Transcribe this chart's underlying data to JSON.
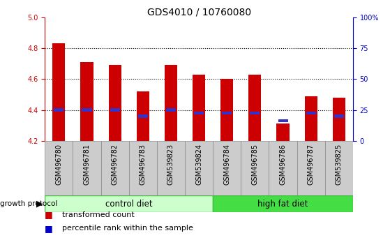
{
  "title": "GDS4010 / 10760080",
  "samples": [
    "GSM496780",
    "GSM496781",
    "GSM496782",
    "GSM496783",
    "GSM539823",
    "GSM539824",
    "GSM496784",
    "GSM496785",
    "GSM496786",
    "GSM496787",
    "GSM539825"
  ],
  "red_values": [
    4.83,
    4.71,
    4.69,
    4.52,
    4.69,
    4.63,
    4.6,
    4.63,
    4.31,
    4.49,
    4.48
  ],
  "blue_values": [
    4.4,
    4.4,
    4.4,
    4.36,
    4.4,
    4.38,
    4.38,
    4.38,
    4.33,
    4.38,
    4.36
  ],
  "y_min": 4.2,
  "y_max": 5.0,
  "y_ticks_left": [
    4.2,
    4.4,
    4.6,
    4.8,
    5.0
  ],
  "y_ticks_right": [
    0,
    25,
    50,
    75,
    100
  ],
  "groups": [
    {
      "label": "control diet",
      "color": "#ccffcc",
      "dark_color": "#44bb44",
      "start": 0,
      "end": 6
    },
    {
      "label": "high fat diet",
      "color": "#44dd44",
      "dark_color": "#44bb44",
      "start": 6,
      "end": 11
    }
  ],
  "group_label_prefix": "growth protocol",
  "legend_items": [
    {
      "color": "#cc0000",
      "label": "transformed count"
    },
    {
      "color": "#0000cc",
      "label": "percentile rank within the sample"
    }
  ],
  "bar_width": 0.45,
  "blue_bar_width": 0.35,
  "blue_bar_height": 0.022,
  "red_color": "#cc0000",
  "blue_color": "#3333cc",
  "plot_bg_color": "#ffffff",
  "sample_bg_color": "#cccccc",
  "dotted_line_color": "#000000",
  "title_color": "#000000",
  "left_axis_color": "#cc0000",
  "right_axis_color": "#0000cc",
  "title_fontsize": 10,
  "tick_fontsize": 7,
  "sample_fontsize": 7,
  "group_fontsize": 8.5,
  "legend_fontsize": 8
}
